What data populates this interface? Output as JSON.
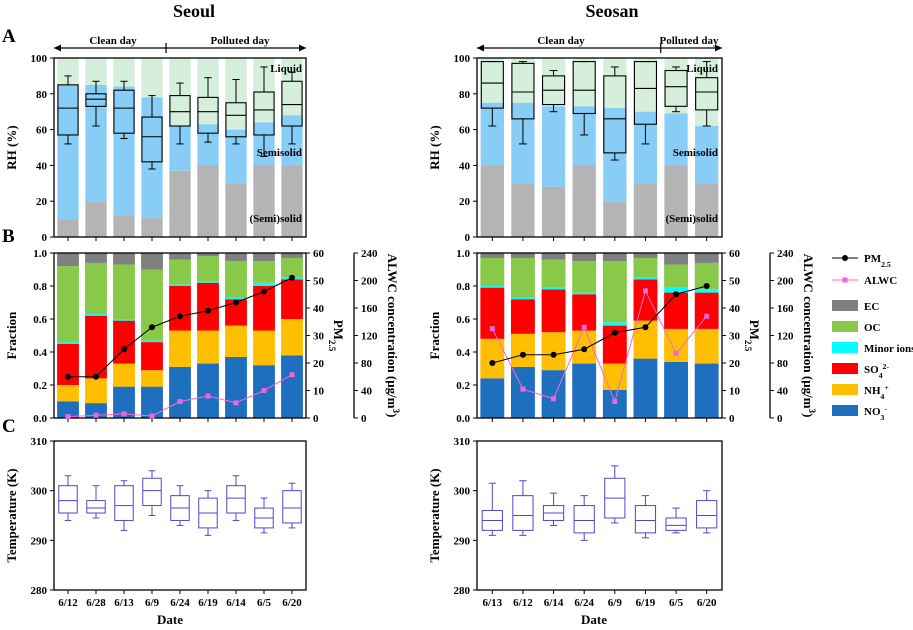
{
  "title_left": "Seoul",
  "title_right": "Seosan",
  "panel_labels": {
    "a": "A",
    "b": "B",
    "c": "C"
  },
  "ranges": {
    "clean": "Clean day",
    "polluted": "Polluted day"
  },
  "xlabel": "Date",
  "phase_labels": {
    "liquid": "Liquid",
    "semisolid": "Semisolid",
    "solid": "(Semi)solid"
  },
  "phase_colors": {
    "liquid": "#d5efdc",
    "semisolid": "#87cdf5",
    "solid": "#b4b4b4"
  },
  "legend": {
    "pm": "PM",
    "pm_sub": "2.5",
    "alwc": "ALWC",
    "ec": "EC",
    "oc": "OC",
    "minor": "Minor ions",
    "so4": "SO",
    "so4_sub": "4",
    "so4_sup": "2-",
    "nh4": "NH",
    "nh4_sub": "4",
    "nh4_sup": "+",
    "no3": "NO",
    "no3_sub": "3",
    "no3_sup": "-"
  },
  "chart_data": [
    {
      "type": "box",
      "city": "Seoul",
      "panel": "A",
      "ylabel": "RH (%)",
      "ylim": [
        0,
        100
      ],
      "yticks": [
        0,
        20,
        40,
        60,
        80,
        100
      ],
      "categories": [
        "6/12",
        "6/28",
        "6/13",
        "6/9",
        "6/24",
        "6/19",
        "6/14",
        "6/5",
        "6/20"
      ],
      "solid_upper": [
        10,
        20,
        12,
        11,
        37,
        40,
        30,
        40,
        40
      ],
      "semisolid_upper": [
        85,
        85,
        84,
        78,
        62,
        63,
        60,
        64,
        68
      ],
      "box": [
        {
          "whislo": 52,
          "q1": 57,
          "med": 72,
          "q3": 85,
          "whishi": 90
        },
        {
          "whislo": 62,
          "q1": 73,
          "med": 77,
          "q3": 80,
          "whishi": 87
        },
        {
          "whislo": 55,
          "q1": 58,
          "med": 72,
          "q3": 82,
          "whishi": 87
        },
        {
          "whislo": 38,
          "q1": 42,
          "med": 56,
          "q3": 67,
          "whishi": 79
        },
        {
          "whislo": 52,
          "q1": 62,
          "med": 70,
          "q3": 79,
          "whishi": 86
        },
        {
          "whislo": 53,
          "q1": 58,
          "med": 70,
          "q3": 78,
          "whishi": 89
        },
        {
          "whislo": 52,
          "q1": 56,
          "med": 68,
          "q3": 75,
          "whishi": 88
        },
        {
          "whislo": 45,
          "q1": 57,
          "med": 71,
          "q3": 81,
          "whishi": 95
        },
        {
          "whislo": 52,
          "q1": 62,
          "med": 74,
          "q3": 87,
          "whishi": 92
        }
      ]
    },
    {
      "type": "box",
      "city": "Seosan",
      "panel": "A",
      "ylabel": "RH (%)",
      "ylim": [
        0,
        100
      ],
      "yticks": [
        0,
        20,
        40,
        60,
        80,
        100
      ],
      "categories": [
        "6/13",
        "6/12",
        "6/14",
        "6/24",
        "6/9",
        "6/19",
        "6/5",
        "6/20"
      ],
      "solid_upper": [
        40,
        30,
        28,
        40,
        20,
        30,
        40,
        30
      ],
      "semisolid_upper": [
        75,
        75,
        73,
        73,
        72,
        70,
        69,
        62
      ],
      "box": [
        {
          "whislo": 62,
          "q1": 72,
          "med": 86,
          "q3": 98,
          "whishi": 98
        },
        {
          "whislo": 52,
          "q1": 66,
          "med": 81,
          "q3": 97,
          "whishi": 98
        },
        {
          "whislo": 70,
          "q1": 74,
          "med": 82,
          "q3": 90,
          "whishi": 93
        },
        {
          "whislo": 57,
          "q1": 69,
          "med": 82,
          "q3": 98,
          "whishi": 98
        },
        {
          "whislo": 43,
          "q1": 47,
          "med": 66,
          "q3": 90,
          "whishi": 95
        },
        {
          "whislo": 52,
          "q1": 63,
          "med": 83,
          "q3": 98,
          "whishi": 98
        },
        {
          "whislo": 70,
          "q1": 73,
          "med": 84,
          "q3": 93,
          "whishi": 95
        },
        {
          "whislo": 62,
          "q1": 71,
          "med": 81,
          "q3": 89,
          "whishi": 98
        }
      ]
    },
    {
      "type": "stacked-bar",
      "city": "Seoul",
      "panel": "B",
      "ylabel": "Fraction",
      "ylim": [
        0,
        1.0
      ],
      "yticks": [
        0.0,
        0.2,
        0.4,
        0.6,
        0.8,
        1.0
      ],
      "pm_axis_label": "PM",
      "pm_axis_sub": "2.5",
      "alwc_axis_label": "ALWC concentration (μg/m",
      "alwc_axis_sup": "3",
      "y2lim": [
        0,
        60
      ],
      "y2ticks": [
        0,
        10,
        20,
        30,
        40,
        50,
        60
      ],
      "y3lim": [
        0,
        240
      ],
      "y3ticks": [
        0,
        40,
        80,
        120,
        160,
        200,
        240
      ],
      "categories": [
        "6/12",
        "6/28",
        "6/13",
        "6/9",
        "6/24",
        "6/19",
        "6/14",
        "6/5",
        "6/20"
      ],
      "series": [
        {
          "name": "NO3",
          "color": "#1f6fbf",
          "values": [
            0.1,
            0.09,
            0.19,
            0.19,
            0.31,
            0.33,
            0.37,
            0.32,
            0.38
          ]
        },
        {
          "name": "NH4",
          "color": "#ffbf00",
          "values": [
            0.1,
            0.15,
            0.14,
            0.1,
            0.22,
            0.2,
            0.19,
            0.21,
            0.22
          ]
        },
        {
          "name": "SO4",
          "color": "#ff0000",
          "values": [
            0.25,
            0.38,
            0.26,
            0.17,
            0.27,
            0.29,
            0.16,
            0.27,
            0.24
          ]
        },
        {
          "name": "Minor ions",
          "color": "#00ffff",
          "values": [
            0.01,
            0.01,
            0.01,
            0.01,
            0.01,
            0.01,
            0.01,
            0.02,
            0.01
          ]
        },
        {
          "name": "OC",
          "color": "#88c94a",
          "values": [
            0.46,
            0.31,
            0.33,
            0.43,
            0.15,
            0.15,
            0.22,
            0.13,
            0.12
          ]
        },
        {
          "name": "EC",
          "color": "#808080",
          "values": [
            0.08,
            0.06,
            0.07,
            0.1,
            0.04,
            0.02,
            0.05,
            0.05,
            0.03
          ]
        }
      ],
      "pm25": [
        15,
        15,
        25,
        33,
        37,
        39,
        42,
        46,
        51
      ],
      "alwc": [
        2,
        4,
        6,
        3,
        24,
        32,
        22,
        40,
        63
      ]
    },
    {
      "type": "stacked-bar",
      "city": "Seosan",
      "panel": "B",
      "ylabel": "Fraction",
      "ylim": [
        0,
        1.0
      ],
      "yticks": [
        0.0,
        0.2,
        0.4,
        0.6,
        0.8,
        1.0
      ],
      "pm_axis_label": "PM",
      "pm_axis_sub": "2.5",
      "alwc_axis_label": "ALWC concentration (μg/m",
      "alwc_axis_sup": "3",
      "y2lim": [
        0,
        60
      ],
      "y2ticks": [
        0,
        10,
        20,
        30,
        40,
        50,
        60
      ],
      "y3lim": [
        0,
        240
      ],
      "y3ticks": [
        0,
        40,
        80,
        120,
        160,
        200,
        240
      ],
      "categories": [
        "6/13",
        "6/12",
        "6/14",
        "6/24",
        "6/9",
        "6/19",
        "6/5",
        "6/20"
      ],
      "series": [
        {
          "name": "NO3",
          "color": "#1f6fbf",
          "values": [
            0.24,
            0.31,
            0.29,
            0.33,
            0.17,
            0.36,
            0.34,
            0.33
          ]
        },
        {
          "name": "NH4",
          "color": "#ffbf00",
          "values": [
            0.24,
            0.2,
            0.23,
            0.2,
            0.16,
            0.23,
            0.2,
            0.21
          ]
        },
        {
          "name": "SO4",
          "color": "#ff0000",
          "values": [
            0.31,
            0.21,
            0.26,
            0.22,
            0.23,
            0.25,
            0.22,
            0.22
          ]
        },
        {
          "name": "Minor ions",
          "color": "#00ffff",
          "values": [
            0.01,
            0.01,
            0.01,
            0.01,
            0.02,
            0.01,
            0.03,
            0.02
          ]
        },
        {
          "name": "OC",
          "color": "#88c94a",
          "values": [
            0.17,
            0.24,
            0.17,
            0.19,
            0.37,
            0.12,
            0.14,
            0.16
          ]
        },
        {
          "name": "EC",
          "color": "#808080",
          "values": [
            0.03,
            0.03,
            0.04,
            0.05,
            0.05,
            0.03,
            0.07,
            0.06
          ]
        }
      ],
      "pm25": [
        20,
        23,
        23,
        25,
        31,
        33,
        45,
        48
      ],
      "alwc": [
        130,
        42,
        28,
        132,
        24,
        185,
        94,
        148
      ]
    },
    {
      "type": "box",
      "city": "Seoul",
      "panel": "C",
      "ylabel": "Temperature (K)",
      "ylim": [
        280,
        310
      ],
      "yticks": [
        280,
        290,
        300,
        310
      ],
      "categories": [
        "6/12",
        "6/28",
        "6/13",
        "6/9",
        "6/24",
        "6/19",
        "6/14",
        "6/5",
        "6/20"
      ],
      "box": [
        {
          "whislo": 294,
          "q1": 295.5,
          "med": 298,
          "q3": 301,
          "whishi": 303
        },
        {
          "whislo": 294.5,
          "q1": 295.5,
          "med": 296.5,
          "q3": 298,
          "whishi": 301
        },
        {
          "whislo": 292,
          "q1": 294,
          "med": 297,
          "q3": 301,
          "whishi": 302
        },
        {
          "whislo": 295,
          "q1": 297,
          "med": 300,
          "q3": 302.5,
          "whishi": 304
        },
        {
          "whislo": 293,
          "q1": 294,
          "med": 296.5,
          "q3": 299,
          "whishi": 301
        },
        {
          "whislo": 291,
          "q1": 292.5,
          "med": 295.5,
          "q3": 298.5,
          "whishi": 300
        },
        {
          "whislo": 294,
          "q1": 295.5,
          "med": 298.5,
          "q3": 301,
          "whishi": 303
        },
        {
          "whislo": 291.5,
          "q1": 292.5,
          "med": 294.5,
          "q3": 296.5,
          "whishi": 298.5
        },
        {
          "whislo": 292.5,
          "q1": 293.5,
          "med": 296.5,
          "q3": 300,
          "whishi": 301.5
        }
      ]
    },
    {
      "type": "box",
      "city": "Seosan",
      "panel": "C",
      "ylabel": "Temperature (K)",
      "ylim": [
        280,
        310
      ],
      "yticks": [
        280,
        290,
        300,
        310
      ],
      "categories": [
        "6/13",
        "6/12",
        "6/14",
        "6/24",
        "6/9",
        "6/19",
        "6/5",
        "6/20"
      ],
      "box": [
        {
          "whislo": 291,
          "q1": 292,
          "med": 294,
          "q3": 296,
          "whishi": 301.5
        },
        {
          "whislo": 291,
          "q1": 292,
          "med": 295,
          "q3": 299,
          "whishi": 302
        },
        {
          "whislo": 293,
          "q1": 294,
          "med": 295.5,
          "q3": 297,
          "whishi": 299.5
        },
        {
          "whislo": 290,
          "q1": 291.5,
          "med": 294,
          "q3": 297,
          "whishi": 299
        },
        {
          "whislo": 293.5,
          "q1": 294.5,
          "med": 298.5,
          "q3": 302.5,
          "whishi": 305
        },
        {
          "whislo": 290.5,
          "q1": 291.5,
          "med": 294,
          "q3": 297,
          "whishi": 299
        },
        {
          "whislo": 291.5,
          "q1": 292,
          "med": 293,
          "q3": 294.5,
          "whishi": 296.5
        },
        {
          "whislo": 291.5,
          "q1": 292.5,
          "med": 295,
          "q3": 298,
          "whishi": 300
        }
      ]
    }
  ]
}
